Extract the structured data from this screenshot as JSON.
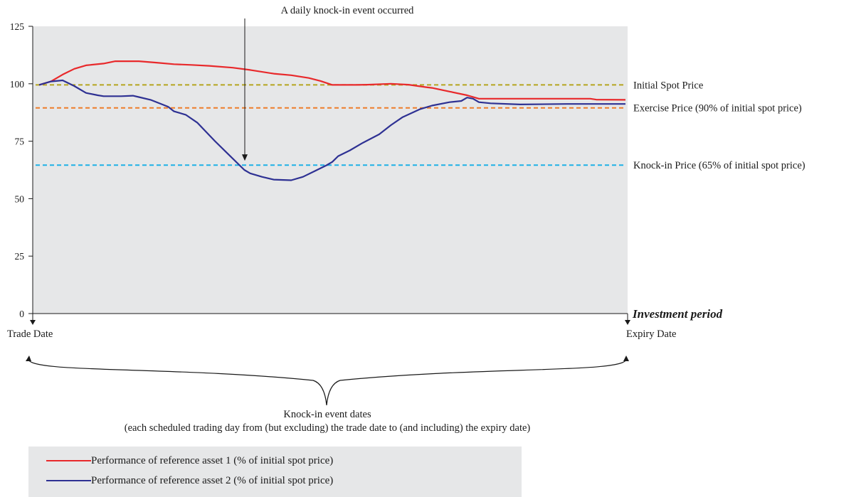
{
  "chart_data": {
    "type": "line",
    "ylim": [
      0,
      125
    ],
    "yticks": [
      "0",
      "25",
      "50",
      "75",
      "100",
      "125"
    ],
    "x_start_label": "Trade Date",
    "x_end_label": "Expiry Date",
    "xlabel": "Investment period",
    "annotation": "A daily knock-in event occurred",
    "brace_label_line1": "Knock-in event dates",
    "brace_label_line2": "(each scheduled trading day from (but excluding) the trade date to (and including) the expiry date)",
    "grid": false,
    "background": "#e6e7e8",
    "reference_lines": [
      {
        "label": "Initial Spot Price",
        "value": 99.5,
        "color": "#b5a51f"
      },
      {
        "label": "Exercise Price (90% of initial spot price)",
        "value": 89.5,
        "color": "#ee7d2b"
      },
      {
        "label": "Knock-in Price (65% of initial spot price)",
        "value": 64.6,
        "color": "#1fb1e6"
      }
    ],
    "series": [
      {
        "name": "Performance of reference asset 1 (% of initial spot price)",
        "color": "#e8292b",
        "x": [
          0,
          2,
          4,
          6,
          8,
          11,
          13,
          16,
          17,
          20,
          23,
          26,
          29,
          33,
          36,
          40,
          43,
          46,
          48,
          50,
          54,
          56,
          60,
          63,
          66,
          67,
          70,
          73,
          75,
          76,
          80,
          85,
          87,
          90,
          94,
          95,
          100
        ],
        "y": [
          99.5,
          101,
          104,
          106.5,
          108,
          108.8,
          109.8,
          109.8,
          109.8,
          109.2,
          108.5,
          108.2,
          107.8,
          107,
          106,
          104.4,
          103.7,
          102.5,
          101.2,
          99.5,
          99.5,
          99.6,
          100,
          99.6,
          98.5,
          98.2,
          96.6,
          95,
          93.5,
          93.5,
          93.5,
          93.5,
          93.5,
          93.5,
          93.5,
          93.1,
          93
        ]
      },
      {
        "name": "Performance of reference asset 2 (% of initial spot price)",
        "color": "#2e3193",
        "x": [
          0,
          2,
          4,
          6,
          8,
          10,
          11,
          14,
          16,
          17,
          19,
          22,
          23,
          25,
          27,
          30,
          32,
          35,
          36,
          38,
          40,
          43,
          45,
          47,
          49,
          50,
          51,
          53,
          55,
          58,
          60,
          62,
          65,
          67,
          70,
          72,
          73,
          74,
          75,
          77,
          82,
          90,
          100
        ],
        "y": [
          99.5,
          101,
          101.5,
          99,
          96,
          95,
          94.6,
          94.6,
          94.8,
          94.2,
          93,
          90,
          88,
          86.5,
          83,
          75,
          70,
          62.5,
          61,
          59.5,
          58.3,
          58,
          59.5,
          62,
          64.5,
          66,
          68.5,
          71,
          74,
          78,
          82,
          85.5,
          89,
          90.5,
          92,
          92.5,
          94,
          93.5,
          92,
          91.5,
          91,
          91.2,
          91.2
        ]
      }
    ]
  }
}
